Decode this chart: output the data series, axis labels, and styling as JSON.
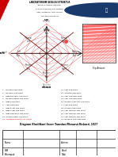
{
  "title_lines": [
    "LABORATORIUM GEOLOGI STRUKTUR",
    "JURUSAN TEKNIK GEOLOGI",
    "FAKULTAS TEKNOLOGI MINERAL",
    "UPN \"VETERAN\" YOGYAKARTA",
    "NO. PRAKTIKUM: 01"
  ],
  "diagram_title": "Diagram Klasifikasi Sesar Translasi Menurut Rickard, 1927",
  "highlighted_fault": "11. Normal Right Slip Fault",
  "fault_list_left": [
    "1.   Normal Slip Fault",
    "2.   Reverse Slip Fault",
    "3.   Right Normal Slip Fault",
    "4.   Reverse Right Slip Fault",
    "5.   Right Slip Fault",
    "6.   Left Slip Fault",
    "7.   Right Left Slip Fault",
    "8.   Right Left Slip Fault",
    "9.   Right Reverse Slip Fault",
    "10. Normal Right Slip Fault",
    "11. Normal Right Slip Fault"
  ],
  "fault_list_right": [
    "12. Left Slip Fault",
    "13. Oblique Slip Fault",
    "14. Left Left Slip Fault",
    "15. Left Left Slip Fault",
    "16. Normal Left Left Slip Fault",
    "17. Left Slip Fault",
    "18. Normal Slip Fault",
    "19. Left Normal Slip Fault",
    "20. Left Normal Slip Fault",
    "21. Left Normal Slip Fault",
    "22. Reverse Left Slip Fault"
  ],
  "form_labels": [
    "Nama",
    "NIM",
    "Kelompok"
  ],
  "form_right_labels": [
    "Asisten",
    "Paraf",
    "Nilai"
  ],
  "axis_labels": [
    "up",
    "down",
    "left",
    "right"
  ],
  "bg_color": "#ffffff",
  "grid_color": "#cc0000",
  "highlight_color": "#ff4444",
  "logo_color": "#1a3a6b"
}
